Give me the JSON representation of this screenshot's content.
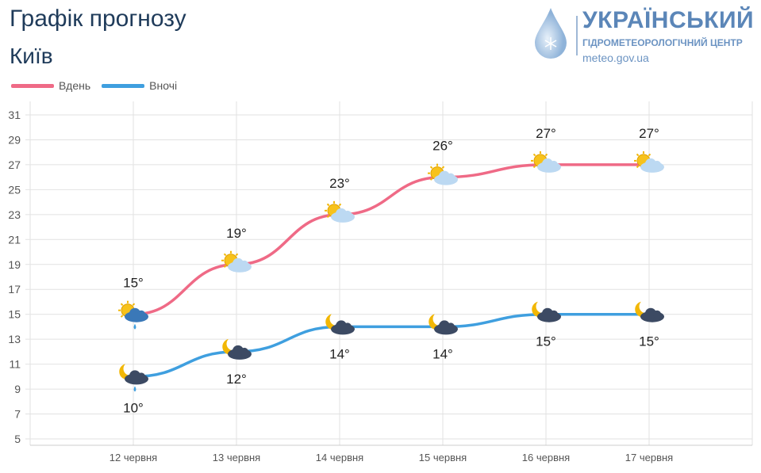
{
  "header": {
    "title": "Графік прогнозу",
    "city": "Київ"
  },
  "logo": {
    "name": "УКРАЇНСЬКИЙ",
    "subtitle": "ГІДРОМЕТЕОРОЛОГІЧНИЙ ЦЕНТР",
    "url": "meteo.gov.ua"
  },
  "chart_data": {
    "type": "line",
    "categories": [
      "12 червня",
      "13 червня",
      "14 червня",
      "15 червня",
      "16 червня",
      "17 червня"
    ],
    "series": [
      {
        "name": "Вдень",
        "color": "#ef6a86",
        "values": [
          15,
          19,
          23,
          26,
          27,
          27
        ],
        "labels": [
          "15°",
          "19°",
          "23°",
          "26°",
          "27°",
          "27°"
        ],
        "icons": [
          "sun-cloud-rain-icon",
          "sun-cloud-icon",
          "sun-cloud-icon",
          "sun-cloud-icon",
          "sun-cloud-icon",
          "sun-cloud-icon"
        ]
      },
      {
        "name": "Вночі",
        "color": "#3f9fdf",
        "values": [
          10,
          12,
          14,
          14,
          15,
          15
        ],
        "labels": [
          "10°",
          "12°",
          "14°",
          "14°",
          "15°",
          "15°"
        ],
        "icons": [
          "moon-cloud-rain-icon",
          "moon-cloud-icon",
          "moon-cloud-icon",
          "moon-cloud-icon",
          "moon-cloud-icon",
          "moon-cloud-icon"
        ]
      }
    ],
    "yticks": [
      31,
      29,
      27,
      25,
      23,
      21,
      19,
      17,
      15,
      13,
      11,
      9,
      7,
      5
    ],
    "ylim": [
      5,
      31
    ],
    "grid": true,
    "legend": "top-left"
  }
}
